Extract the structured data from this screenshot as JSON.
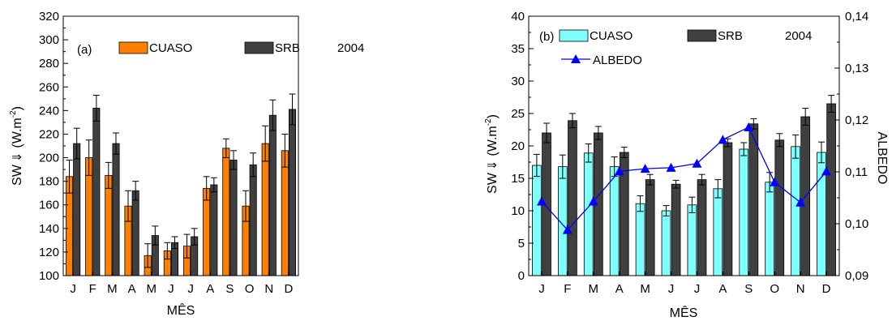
{
  "chart_data": [
    {
      "type": "bar",
      "panel_label": "(a)",
      "year_label": "2004",
      "xlabel": "MÊS",
      "ylabel": "SW",
      "ylabel_unit": "(W.m",
      "ylabel_exp": "-2",
      "ylabel_close": ")",
      "categories": [
        "J",
        "F",
        "M",
        "A",
        "M",
        "J",
        "J",
        "A",
        "S",
        "O",
        "N",
        "D"
      ],
      "ylim": [
        100,
        320
      ],
      "yticks": [
        "100",
        "120",
        "140",
        "160",
        "180",
        "200",
        "220",
        "240",
        "260",
        "280",
        "300",
        "320"
      ],
      "legend_placement": "top",
      "series": [
        {
          "name": "CUASO",
          "color": "#ff8000",
          "values": [
            184,
            200,
            185,
            159,
            117,
            121,
            125,
            174,
            208,
            159,
            212,
            206
          ],
          "errors": [
            14,
            15,
            11,
            13,
            10,
            7,
            10,
            10,
            8,
            13,
            15,
            14
          ]
        },
        {
          "name": "SRB",
          "color": "#404040",
          "values": [
            212,
            242,
            212,
            172,
            134,
            128,
            133,
            177,
            198,
            194,
            236,
            241
          ],
          "errors": [
            13,
            11,
            9,
            8,
            8,
            5,
            7,
            6,
            8,
            10,
            13,
            13
          ]
        }
      ]
    },
    {
      "type": "bar",
      "panel_label": "(b)",
      "year_label": "2004",
      "xlabel": "MÊS",
      "ylabel": "SW",
      "ylabel_unit": "(W.m",
      "ylabel_exp": "-2",
      "ylabel_close": ")",
      "y2label": "ALBEDO",
      "categories": [
        "J",
        "F",
        "M",
        "A",
        "M",
        "J",
        "J",
        "A",
        "S",
        "O",
        "N",
        "D"
      ],
      "ylim": [
        0,
        40
      ],
      "yticks": [
        "0",
        "5",
        "10",
        "15",
        "20",
        "25",
        "30",
        "35",
        "40"
      ],
      "y2lim": [
        0.09,
        0.14
      ],
      "y2ticks": [
        "0,09",
        "0,10",
        "0,11",
        "0,12",
        "0,13",
        "0,14"
      ],
      "legend_placement": "top",
      "series": [
        {
          "name": "CUASO",
          "color": "#80ffff",
          "values": [
            17,
            16.8,
            18.9,
            16.8,
            11.1,
            10,
            10.9,
            13.4,
            19.5,
            14.4,
            19.9,
            19
          ],
          "errors": [
            1.7,
            1.8,
            1.4,
            1.5,
            1.2,
            0.8,
            1.2,
            1.4,
            1.0,
            1.5,
            1.8,
            1.6
          ]
        },
        {
          "name": "SRB",
          "color": "#404040",
          "values": [
            22,
            23.9,
            22,
            19,
            14.8,
            14.1,
            14.8,
            20.5,
            23.4,
            20.9,
            24.5,
            26.5
          ],
          "errors": [
            1.5,
            1.1,
            1.0,
            0.8,
            0.8,
            0.6,
            0.8,
            0.6,
            0.8,
            1.0,
            1.3,
            1.3
          ]
        },
        {
          "name": "ALBEDO",
          "color": "#0000ff",
          "kind": "line",
          "axis": "right",
          "values": [
            0.1043,
            0.0988,
            0.1043,
            0.1101,
            0.1106,
            0.1108,
            0.1116,
            0.1162,
            0.1186,
            0.108,
            0.1041,
            0.1101
          ]
        }
      ]
    }
  ]
}
